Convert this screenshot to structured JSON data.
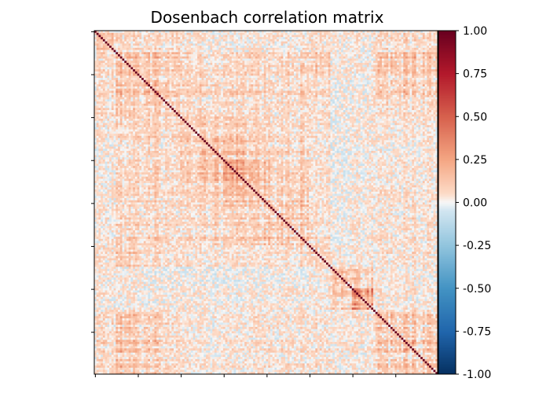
{
  "chart_data": {
    "type": "heatmap",
    "title": "Dosenbach correlation matrix",
    "n_regions": 160,
    "diagonal_value": 1.0,
    "block_size": 10,
    "block_mean_correlation": [
      [
        0.08,
        0.05,
        0.05,
        0.05,
        0.03,
        0.02,
        0.02,
        0.02,
        0.03,
        0.02,
        0.04,
        0.02,
        0.03,
        0.05,
        0.06,
        0.05
      ],
      [
        0.05,
        0.12,
        0.12,
        0.08,
        0.06,
        0.05,
        0.06,
        0.07,
        0.06,
        0.08,
        0.1,
        0.02,
        0.02,
        0.1,
        0.12,
        0.12
      ],
      [
        0.05,
        0.12,
        0.14,
        0.08,
        0.08,
        0.08,
        0.08,
        0.08,
        0.06,
        0.08,
        0.08,
        0.0,
        0.0,
        0.08,
        0.1,
        0.1
      ],
      [
        0.05,
        0.08,
        0.08,
        0.08,
        0.05,
        0.04,
        0.04,
        0.05,
        0.04,
        0.05,
        0.05,
        0.0,
        0.02,
        0.05,
        0.05,
        0.06
      ],
      [
        0.03,
        0.06,
        0.08,
        0.05,
        0.08,
        0.1,
        0.08,
        0.06,
        0.05,
        0.06,
        0.04,
        0.0,
        0.02,
        0.02,
        0.03,
        0.03
      ],
      [
        0.02,
        0.05,
        0.08,
        0.04,
        0.1,
        0.18,
        0.15,
        0.1,
        0.08,
        0.08,
        0.04,
        -0.01,
        0.02,
        0.02,
        0.02,
        0.03
      ],
      [
        0.02,
        0.06,
        0.08,
        0.04,
        0.08,
        0.15,
        0.2,
        0.12,
        0.08,
        0.08,
        0.04,
        -0.01,
        0.02,
        0.02,
        0.03,
        0.03
      ],
      [
        0.02,
        0.07,
        0.08,
        0.05,
        0.06,
        0.1,
        0.12,
        0.1,
        0.08,
        0.1,
        0.04,
        0.0,
        0.02,
        0.04,
        0.04,
        0.04
      ],
      [
        0.03,
        0.06,
        0.06,
        0.04,
        0.05,
        0.08,
        0.08,
        0.08,
        0.1,
        0.1,
        0.05,
        0.0,
        0.02,
        0.03,
        0.04,
        0.04
      ],
      [
        0.02,
        0.08,
        0.08,
        0.05,
        0.06,
        0.08,
        0.08,
        0.1,
        0.1,
        0.12,
        0.06,
        0.0,
        0.02,
        0.04,
        0.04,
        0.05
      ],
      [
        0.04,
        0.1,
        0.08,
        0.05,
        0.04,
        0.04,
        0.04,
        0.04,
        0.05,
        0.06,
        0.1,
        0.03,
        0.03,
        0.04,
        0.05,
        0.05
      ],
      [
        0.02,
        0.02,
        0.0,
        0.0,
        0.0,
        -0.01,
        -0.01,
        0.0,
        0.0,
        0.0,
        0.03,
        0.1,
        0.08,
        0.02,
        0.02,
        0.02
      ],
      [
        0.03,
        0.02,
        0.0,
        0.02,
        0.02,
        0.02,
        0.02,
        0.02,
        0.02,
        0.02,
        0.03,
        0.08,
        0.25,
        0.03,
        0.03,
        0.03
      ],
      [
        0.05,
        0.1,
        0.08,
        0.05,
        0.02,
        0.02,
        0.02,
        0.04,
        0.03,
        0.04,
        0.04,
        0.02,
        0.03,
        0.1,
        0.1,
        0.1
      ],
      [
        0.06,
        0.12,
        0.1,
        0.05,
        0.03,
        0.02,
        0.03,
        0.04,
        0.04,
        0.04,
        0.05,
        0.02,
        0.03,
        0.1,
        0.15,
        0.12
      ],
      [
        0.05,
        0.12,
        0.1,
        0.06,
        0.03,
        0.03,
        0.03,
        0.04,
        0.04,
        0.05,
        0.05,
        0.02,
        0.03,
        0.1,
        0.12,
        0.15
      ]
    ],
    "axis_tick_positions": [
      0,
      20,
      40,
      60,
      80,
      100,
      120,
      140
    ],
    "axis_tick_labels_shown": false,
    "colormap": "RdBu_r",
    "vmin": -1.0,
    "vmax": 1.0,
    "colorbar": {
      "position": "right",
      "ticks": [
        "1.00",
        "0.75",
        "0.50",
        "0.25",
        "0.00",
        "-0.25",
        "-0.50",
        "-0.75",
        "-1.00"
      ]
    },
    "grid": false
  }
}
